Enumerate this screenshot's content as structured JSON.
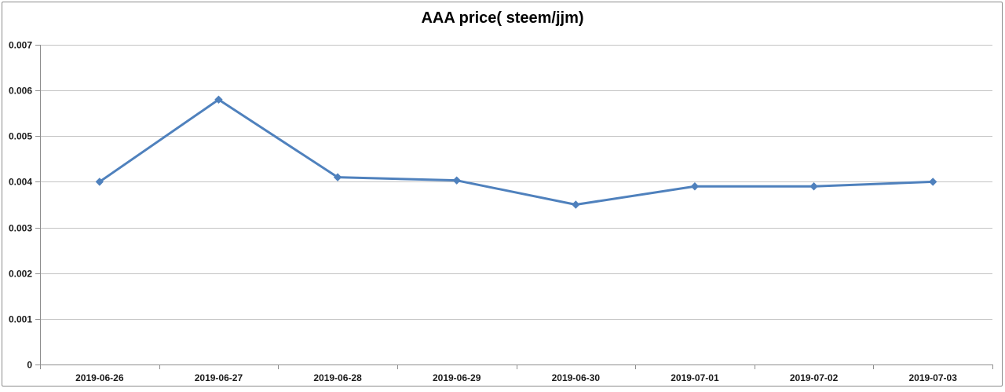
{
  "chart_data": {
    "type": "line",
    "title": "AAA price( steem/jjm)",
    "categories": [
      "2019-06-26",
      "2019-06-27",
      "2019-06-28",
      "2019-06-29",
      "2019-06-30",
      "2019-07-01",
      "2019-07-02",
      "2019-07-03"
    ],
    "values": [
      0.004,
      0.0058,
      0.0041,
      0.00403,
      0.0035,
      0.0039,
      0.0039,
      0.004
    ],
    "xlabel": "",
    "ylabel": "",
    "ylim": [
      0,
      0.007
    ],
    "yticks": [
      0,
      0.001,
      0.002,
      0.003,
      0.004,
      0.005,
      0.006,
      0.007
    ],
    "ytick_labels": [
      "0",
      "0.001",
      "0.002",
      "0.003",
      "0.004",
      "0.005",
      "0.006",
      "0.007"
    ],
    "grid": true,
    "legend": "none",
    "marker": "diamond",
    "colors": {
      "series": "#4F81BD",
      "gridline": "#C3C3C3",
      "axis": "#8E8E8E",
      "tick_label": "#1A1A1A",
      "title": "#000000",
      "border": "#8C8C8C",
      "background": "#FFFFFF"
    }
  }
}
